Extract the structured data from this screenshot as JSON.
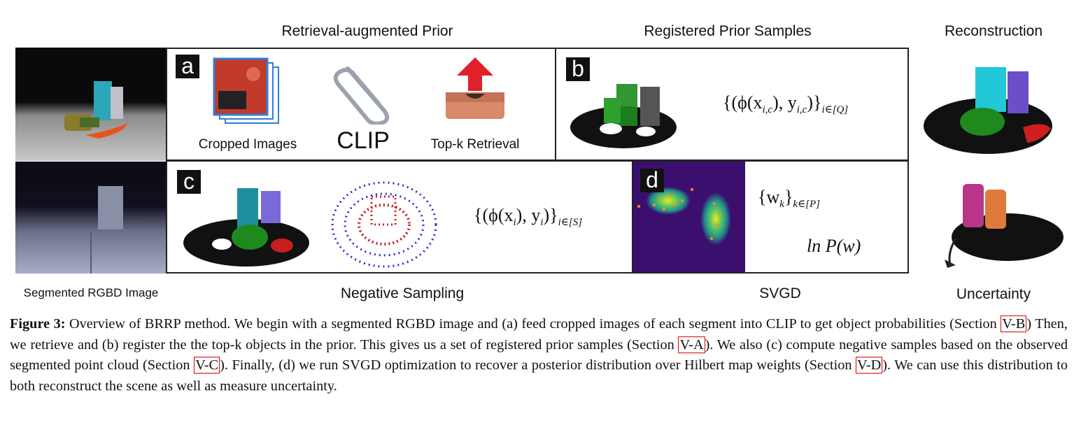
{
  "headers": {
    "retrieval": "Retrieval-augmented Prior",
    "registered": "Registered Prior Samples",
    "reconstruction": "Reconstruction",
    "segmented": "Segmented RGBD Image",
    "negative": "Negative Sampling",
    "svgd": "SVGD",
    "uncertainty": "Uncertainty"
  },
  "panel_a": {
    "badge": "a",
    "cropped_label": "Cropped Images",
    "clip_label": "CLIP",
    "topk_label": "Top-k Retrieval"
  },
  "panel_b": {
    "badge": "b",
    "formula_main": "{(ϕ(x",
    "formula_sub1": "i,c",
    "formula_mid": "), y",
    "formula_sub2": "i,c",
    "formula_end": ")}",
    "formula_idx": "i∈[Q]"
  },
  "panel_c": {
    "badge": "c",
    "formula_main": "{(ϕ(x",
    "formula_sub1": "i",
    "formula_mid": "), y",
    "formula_sub2": "i",
    "formula_end": ")}",
    "formula_idx": "i∈[S]"
  },
  "panel_d": {
    "badge": "d",
    "weights": "{w",
    "weights_sub": "k",
    "weights_end": "}",
    "weights_idx": "k∈[P]",
    "logp": "ln P(w)"
  },
  "caption": {
    "fig_label": "Figure 3:",
    "t1": " Overview of BRRP method. We begin with a segmented RGBD image and (a) feed cropped images of each segment into CLIP to get object probabilities (Section ",
    "r1": "V-B",
    "t2": ") Then, we retrieve and (b) register the the top-k objects in the prior. This gives us a set of registered prior samples (Section ",
    "r2": "V-A",
    "t3": "). We also (c) compute negative samples based on the observed segmented point cloud (Section ",
    "r3": "V-C",
    "t4": "). Finally, (d) we run SVGD optimization to recover a posterior distribution over Hilbert map weights (Section ",
    "r4": "V-D",
    "t5": "). We can use this distribution to both reconstruct the scene as well as measure uncertainty."
  },
  "colors": {
    "accent_red": "#d00000",
    "green": "#1e8a1e",
    "cyan": "#22c8d8",
    "purple": "#6a4fc8",
    "svgd_bg": "#3b0f6e"
  }
}
